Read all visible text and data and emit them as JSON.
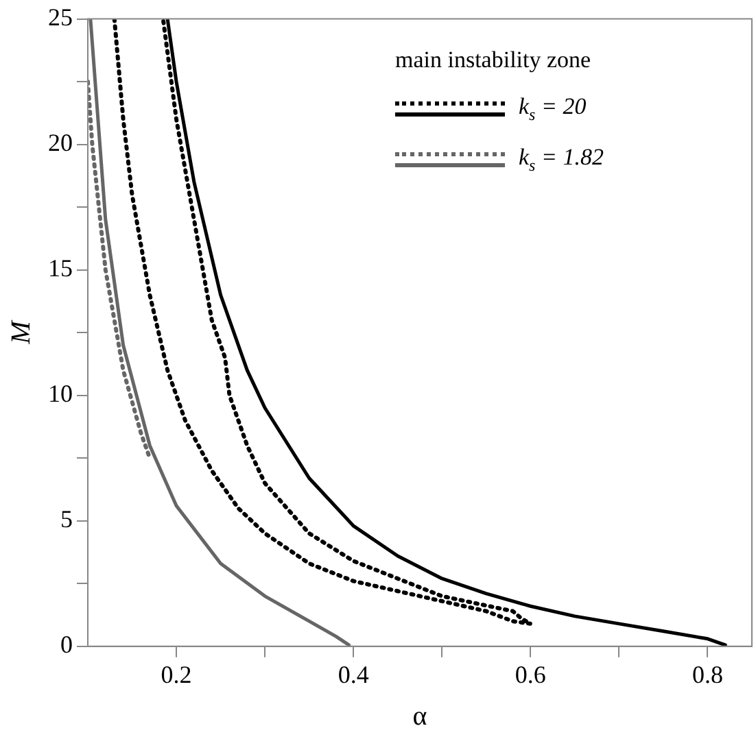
{
  "chart_data": {
    "type": "line",
    "xlabel": "α",
    "ylabel": "M",
    "legend_title": "main instability zone",
    "legend": "top right",
    "grid": false,
    "xlim": [
      0.1,
      0.85
    ],
    "xticks": [
      0.2,
      {
        "value": 0.3,
        "label": null
      },
      0.4,
      {
        "value": 0.5,
        "label": null
      },
      0.6,
      {
        "value": 0.7,
        "label": null
      },
      0.8
    ],
    "ylim": [
      0,
      25
    ],
    "yticks": [
      0,
      {
        "value": 2.5,
        "label": null
      },
      5,
      {
        "value": 7.5,
        "label": null
      },
      10,
      {
        "value": 12.5,
        "label": null
      },
      15,
      {
        "value": 17.5,
        "label": null
      },
      20,
      {
        "value": 22.5,
        "label": null
      },
      25
    ],
    "series": [
      {
        "name": "k$_{s}$ = 20",
        "color": "#000000",
        "line_style": "dotted",
        "x": [
          0.13,
          0.14,
          0.15,
          0.17,
          0.19,
          0.21,
          0.24,
          0.27,
          0.3,
          0.35,
          0.4,
          0.45,
          0.5,
          0.55,
          0.58,
          0.6,
          0.59,
          0.58,
          0.5,
          0.45,
          0.4,
          0.35,
          0.3,
          0.28,
          0.26,
          0.255,
          0.24,
          0.22,
          0.2,
          0.185
        ],
        "values": [
          25,
          21,
          18,
          14,
          11,
          9,
          7,
          5.5,
          4.5,
          3.3,
          2.6,
          2.2,
          1.8,
          1.4,
          1.0,
          0.9,
          1.1,
          1.4,
          2.0,
          2.7,
          3.4,
          4.5,
          6.5,
          8,
          10,
          11.5,
          13,
          17,
          21,
          25
        ]
      },
      {
        "color": "#000000",
        "line_style": "solid",
        "x": [
          0.19,
          0.2,
          0.22,
          0.25,
          0.28,
          0.3,
          0.35,
          0.4,
          0.45,
          0.5,
          0.55,
          0.6,
          0.65,
          0.7,
          0.75,
          0.8,
          0.82
        ],
        "values": [
          25,
          22.5,
          18.5,
          14,
          11,
          9.5,
          6.7,
          4.8,
          3.6,
          2.7,
          2.1,
          1.6,
          1.2,
          0.9,
          0.6,
          0.3,
          0.05
        ]
      },
      {
        "name": "k$_{s}$ = 1.82",
        "color": "#666666",
        "line_style": "dotted",
        "x": [
          0.1,
          0.105,
          0.12,
          0.14,
          0.16,
          0.17
        ],
        "values": [
          22.5,
          20,
          15,
          11,
          8.5,
          7.5
        ]
      },
      {
        "color": "#666666",
        "line_style": "solid",
        "x": [
          0.103,
          0.12,
          0.14,
          0.17,
          0.2,
          0.25,
          0.3,
          0.35,
          0.38,
          0.395
        ],
        "values": [
          25,
          17,
          12,
          8,
          5.6,
          3.3,
          2.0,
          1.0,
          0.4,
          0.05
        ]
      }
    ]
  }
}
